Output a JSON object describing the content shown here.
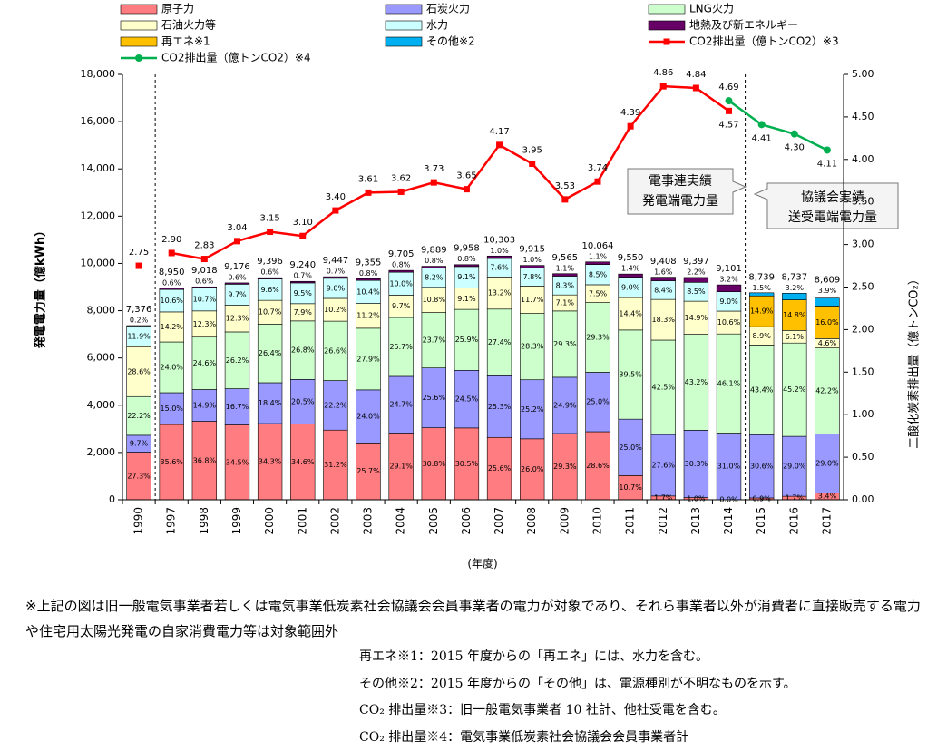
{
  "chart_data": {
    "type": "bar",
    "y_label": "発電電力量（億kWh）",
    "y2_label": "二酸化炭素排出量（億トンCO₂）",
    "x_label": "(年度)",
    "categories": [
      "1990",
      "1997",
      "1998",
      "1999",
      "2000",
      "2001",
      "2002",
      "2003",
      "2004",
      "2005",
      "2006",
      "2007",
      "2008",
      "2009",
      "2010",
      "2011",
      "2012",
      "2013",
      "2014",
      "2015",
      "2016",
      "2017"
    ],
    "totals": [
      7376,
      8950,
      9018,
      9176,
      9396,
      9240,
      9447,
      9355,
      9705,
      9889,
      9958,
      10303,
      9915,
      9565,
      10064,
      9550,
      9408,
      9397,
      9101,
      8739,
      8737,
      8609
    ],
    "total_labels": [
      "7,376",
      "8,950",
      "9,018",
      "9,176",
      "9,396",
      "9,240",
      "9,447",
      "9,355",
      "9,705",
      "9,889",
      "9,958",
      "10,303",
      "9,915",
      "9,565",
      "10,064",
      "9,550",
      "9,408",
      "9,397",
      "9,101",
      "8,739",
      "8,737",
      "8,609"
    ],
    "series": [
      {
        "name": "原子力",
        "color": "#ff7c80",
        "label_position": "inside",
        "values": [
          2014,
          3186,
          3319,
          3166,
          3223,
          3197,
          2947,
          2404,
          2824,
          3046,
          3037,
          2638,
          2578,
          2803,
          2878,
          1022,
          160,
          94,
          0,
          79,
          149,
          293
        ],
        "shares": [
          "27.3%",
          "35.6%",
          "36.8%",
          "34.5%",
          "34.3%",
          "34.6%",
          "31.2%",
          "25.7%",
          "29.1%",
          "30.8%",
          "30.5%",
          "25.6%",
          "26.0%",
          "29.3%",
          "28.6%",
          "10.7%",
          "1.7%",
          "1.0%",
          "0.0%",
          "0.9%",
          "1.7%",
          "3.4%"
        ]
      },
      {
        "name": "石炭火力",
        "color": "#9999ff",
        "label_position": "inside",
        "values": [
          715,
          1343,
          1344,
          1532,
          1729,
          1894,
          2097,
          2245,
          2397,
          2532,
          2440,
          2607,
          2499,
          2382,
          2516,
          2388,
          2597,
          2847,
          2821,
          2674,
          2534,
          2497
        ],
        "shares": [
          "9.7%",
          "15.0%",
          "14.9%",
          "16.7%",
          "18.4%",
          "20.5%",
          "22.2%",
          "24.0%",
          "24.7%",
          "25.6%",
          "24.5%",
          "25.3%",
          "25.2%",
          "24.9%",
          "25.0%",
          "25.0%",
          "27.6%",
          "30.3%",
          "31.0%",
          "30.6%",
          "29.0%",
          "29.0%"
        ]
      },
      {
        "name": "LNG火力",
        "color": "#ccffcc",
        "label_position": "inside",
        "values": [
          1637,
          2148,
          2218,
          2404,
          2481,
          2476,
          2513,
          2610,
          2494,
          2344,
          2579,
          2823,
          2806,
          2803,
          2949,
          3772,
          3998,
          4060,
          4196,
          3793,
          3949,
          3633
        ],
        "shares": [
          "22.2%",
          "24.0%",
          "24.6%",
          "26.2%",
          "26.4%",
          "26.8%",
          "26.6%",
          "27.9%",
          "25.7%",
          "23.7%",
          "25.9%",
          "27.4%",
          "28.3%",
          "29.3%",
          "29.3%",
          "39.5%",
          "42.5%",
          "43.2%",
          "46.1%",
          "43.4%",
          "45.2%",
          "42.2%"
        ]
      },
      {
        "name": "石油火力等",
        "color": "#ffffcc",
        "label_position": "inside",
        "values": [
          2110,
          1271,
          1109,
          1129,
          1005,
          730,
          964,
          1048,
          941,
          1068,
          906,
          1360,
          1160,
          679,
          755,
          1375,
          1722,
          1400,
          965,
          778,
          533,
          396
        ],
        "shares": [
          "28.6%",
          "14.2%",
          "12.3%",
          "12.3%",
          "10.7%",
          "7.9%",
          "10.2%",
          "11.2%",
          "9.7%",
          "10.8%",
          "9.1%",
          "13.2%",
          "11.7%",
          "7.1%",
          "7.5%",
          "14.4%",
          "18.3%",
          "14.9%",
          "10.6%",
          "8.9%",
          "6.1%",
          "4.6%"
        ]
      },
      {
        "name": "水力",
        "color": "#ccffff",
        "label_position": "inside",
        "values": [
          878,
          949,
          965,
          890,
          902,
          878,
          850,
          973,
          971,
          811,
          906,
          783,
          773,
          794,
          855,
          860,
          790,
          799,
          819,
          null,
          null,
          null
        ],
        "shares": [
          "11.9%",
          "10.6%",
          "10.7%",
          "9.7%",
          "9.6%",
          "9.5%",
          "9.0%",
          "10.4%",
          "10.0%",
          "8.2%",
          "9.1%",
          "7.6%",
          "7.8%",
          "8.3%",
          "8.5%",
          "9.0%",
          "8.4%",
          "8.5%",
          "9.0%",
          null,
          null,
          null
        ]
      },
      {
        "name": "地熱及び新エネルギー",
        "color": "#660066",
        "label_position": "top",
        "values": [
          15,
          54,
          54,
          55,
          56,
          65,
          66,
          75,
          78,
          79,
          80,
          103,
          99,
          105,
          111,
          134,
          151,
          207,
          291,
          null,
          null,
          null
        ],
        "shares": [
          "0.2%",
          "0.6%",
          "0.6%",
          "0.6%",
          "0.6%",
          "0.7%",
          "0.7%",
          "0.8%",
          "0.8%",
          "0.8%",
          "0.8%",
          "1.0%",
          "1.0%",
          "1.1%",
          "1.1%",
          "1.4%",
          "1.6%",
          "2.2%",
          "3.2%",
          null,
          null,
          null
        ]
      },
      {
        "name": "再エネ※1",
        "color": "#ffc000",
        "label_position": "inside",
        "values": [
          null,
          null,
          null,
          null,
          null,
          null,
          null,
          null,
          null,
          null,
          null,
          null,
          null,
          null,
          null,
          null,
          null,
          null,
          null,
          1302,
          1293,
          1377
        ],
        "shares": [
          null,
          null,
          null,
          null,
          null,
          null,
          null,
          null,
          null,
          null,
          null,
          null,
          null,
          null,
          null,
          null,
          null,
          null,
          null,
          "14.9%",
          "14.8%",
          "16.0%"
        ]
      },
      {
        "name": "その他※2",
        "color": "#00b0f0",
        "label_position": "top",
        "values": [
          null,
          null,
          null,
          null,
          null,
          null,
          null,
          null,
          null,
          null,
          null,
          null,
          null,
          null,
          null,
          null,
          null,
          null,
          null,
          131,
          280,
          336
        ],
        "shares": [
          null,
          null,
          null,
          null,
          null,
          null,
          null,
          null,
          null,
          null,
          null,
          null,
          null,
          null,
          null,
          null,
          null,
          null,
          null,
          "1.5%",
          "3.2%",
          "3.9%"
        ]
      },
      {
        "name": "CO2排出量（億トンCO2）※3",
        "type": "line",
        "axis": "y2",
        "color": "#ff0000",
        "marker": "square",
        "line_breaks_before": [
          1
        ],
        "values": [
          2.75,
          2.9,
          2.83,
          3.04,
          3.15,
          3.1,
          3.4,
          3.61,
          3.62,
          3.73,
          3.65,
          4.17,
          3.95,
          3.53,
          3.74,
          4.39,
          4.86,
          4.84,
          4.57,
          null,
          null,
          null
        ],
        "value_labels": [
          "2.75",
          "2.90",
          "2.83",
          "3.04",
          "3.15",
          "3.10",
          "3.40",
          "3.61",
          "3.62",
          "3.73",
          "3.65",
          "4.17",
          "3.95",
          "3.53",
          "3.74",
          "4.39",
          "4.86",
          "4.84",
          "4.57",
          null,
          null,
          null
        ]
      },
      {
        "name": "CO2排出量（億トンCO2）※4",
        "type": "line",
        "axis": "y2",
        "color": "#00b050",
        "marker": "circle",
        "line_breaks_before": [],
        "values": [
          null,
          null,
          null,
          null,
          null,
          null,
          null,
          null,
          null,
          null,
          null,
          null,
          null,
          null,
          null,
          null,
          null,
          null,
          4.69,
          4.41,
          4.3,
          4.11
        ],
        "value_labels": [
          null,
          null,
          null,
          null,
          null,
          null,
          null,
          null,
          null,
          null,
          null,
          null,
          null,
          null,
          null,
          null,
          null,
          null,
          "4.69",
          "4.41",
          "4.30",
          "4.11"
        ]
      }
    ],
    "ylim": [
      0,
      18000
    ],
    "yticks": [
      0,
      {
        "value": 2000,
        "label": "2,000"
      },
      {
        "value": 4000,
        "label": "4,000"
      },
      {
        "value": 6000,
        "label": "6,000"
      },
      {
        "value": 8000,
        "label": "8,000"
      },
      {
        "value": 10000,
        "label": "10,000"
      },
      {
        "value": 12000,
        "label": "12,000"
      },
      {
        "value": 14000,
        "label": "14,000"
      },
      {
        "value": 16000,
        "label": "16,000"
      },
      {
        "value": 18000,
        "label": "18,000"
      }
    ],
    "y2lim": [
      0,
      5
    ],
    "y2ticks": [
      {
        "value": 0,
        "label": "0.00"
      },
      {
        "value": 0.5,
        "label": "0.50"
      },
      {
        "value": 1,
        "label": "1.00"
      },
      {
        "value": 1.5,
        "label": "1.50"
      },
      {
        "value": 2,
        "label": "2.00"
      },
      {
        "value": 2.5,
        "label": "2.50"
      },
      {
        "value": 3,
        "label": "3.00"
      },
      {
        "value": 3.5,
        "label": "3.50"
      },
      {
        "value": 4,
        "label": "4.00"
      },
      {
        "value": 4.5,
        "label": "4.50"
      },
      {
        "value": 5,
        "label": "5.00"
      }
    ],
    "grid": false,
    "annotations": [
      [
        "電事連実績",
        "発電端電力量"
      ],
      [
        "協議会実績",
        "送受電端電力量"
      ]
    ]
  },
  "notes": {
    "main": "※上記の図は旧一般電気事業者若しくは電気事業低炭素社会協議会会員事業者の電力が対象であり、それら事業者以外が消費者に直接販売する電力や住宅用太陽光発電の自家消費電力等は対象範囲外",
    "items": [
      "再エネ※1：2015 年度からの「再エネ」には、水力を含む。",
      "その他※2：2015 年度からの「その他」は、電源種別が不明なものを示す。",
      "CO₂ 排出量※3：旧一般電気事業者 10 社計、他社受電を含む。",
      "CO₂ 排出量※4：電気事業低炭素社会協議会会員事業者計"
    ]
  }
}
